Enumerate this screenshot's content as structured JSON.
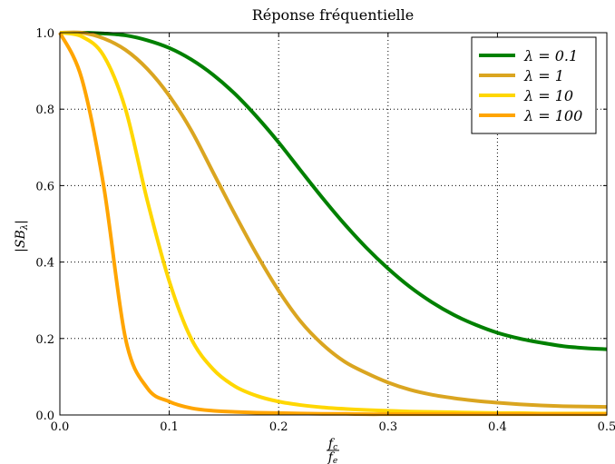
{
  "chart_data": {
    "type": "line",
    "title": "Réponse fréquentielle",
    "xlabel": {
      "numerator": "f_c",
      "denominator": "f_e"
    },
    "ylabel": "|SB_λ|",
    "xlim": [
      0.0,
      0.5
    ],
    "ylim": [
      0.0,
      1.0
    ],
    "xticks": [
      0.0,
      0.1,
      0.2,
      0.3,
      0.4,
      0.5
    ],
    "xtick_labels": [
      "0.0",
      "0.1",
      "0.2",
      "0.3",
      "0.4",
      "0.5"
    ],
    "yticks": [
      0.0,
      0.2,
      0.4,
      0.6,
      0.8,
      1.0
    ],
    "ytick_labels": [
      "0.0",
      "0.2",
      "0.4",
      "0.6",
      "0.8",
      "1.0"
    ],
    "grid": true,
    "grid_style": "dotted",
    "legend_position": "top-right",
    "x": [
      0.0,
      0.02,
      0.04,
      0.06,
      0.08,
      0.1,
      0.12,
      0.14,
      0.16,
      0.18,
      0.2,
      0.22,
      0.24,
      0.26,
      0.28,
      0.3,
      0.32,
      0.34,
      0.36,
      0.38,
      0.4,
      0.42,
      0.44,
      0.46,
      0.48,
      0.5
    ],
    "series": [
      {
        "name": "λ = 0.1",
        "color": "#008000",
        "values": [
          1.0,
          1.0,
          0.998,
          0.993,
          0.98,
          0.96,
          0.93,
          0.89,
          0.84,
          0.78,
          0.713,
          0.64,
          0.568,
          0.5,
          0.438,
          0.383,
          0.335,
          0.295,
          0.262,
          0.236,
          0.215,
          0.2,
          0.189,
          0.18,
          0.175,
          0.172
        ]
      },
      {
        "name": "λ = 1",
        "color": "#daa520",
        "values": [
          1.0,
          1.0,
          0.985,
          0.955,
          0.905,
          0.835,
          0.745,
          0.635,
          0.525,
          0.42,
          0.325,
          0.245,
          0.185,
          0.14,
          0.11,
          0.085,
          0.066,
          0.053,
          0.044,
          0.037,
          0.032,
          0.028,
          0.025,
          0.023,
          0.022,
          0.021
        ]
      },
      {
        "name": "λ = 10",
        "color": "#ffd700",
        "values": [
          1.0,
          0.99,
          0.94,
          0.8,
          0.56,
          0.35,
          0.2,
          0.12,
          0.075,
          0.05,
          0.035,
          0.026,
          0.02,
          0.016,
          0.013,
          0.011,
          0.009,
          0.008,
          0.007,
          0.006,
          0.005,
          0.005,
          0.004,
          0.004,
          0.004,
          0.004
        ]
      },
      {
        "name": "λ = 100",
        "color": "#ffa500",
        "values": [
          1.0,
          0.88,
          0.6,
          0.2,
          0.07,
          0.035,
          0.018,
          0.011,
          0.008,
          0.006,
          0.005,
          0.004,
          0.003,
          0.003,
          0.002,
          0.002,
          0.002,
          0.002,
          0.002,
          0.002,
          0.002,
          0.002,
          0.002,
          0.002,
          0.002,
          0.002
        ]
      }
    ]
  }
}
